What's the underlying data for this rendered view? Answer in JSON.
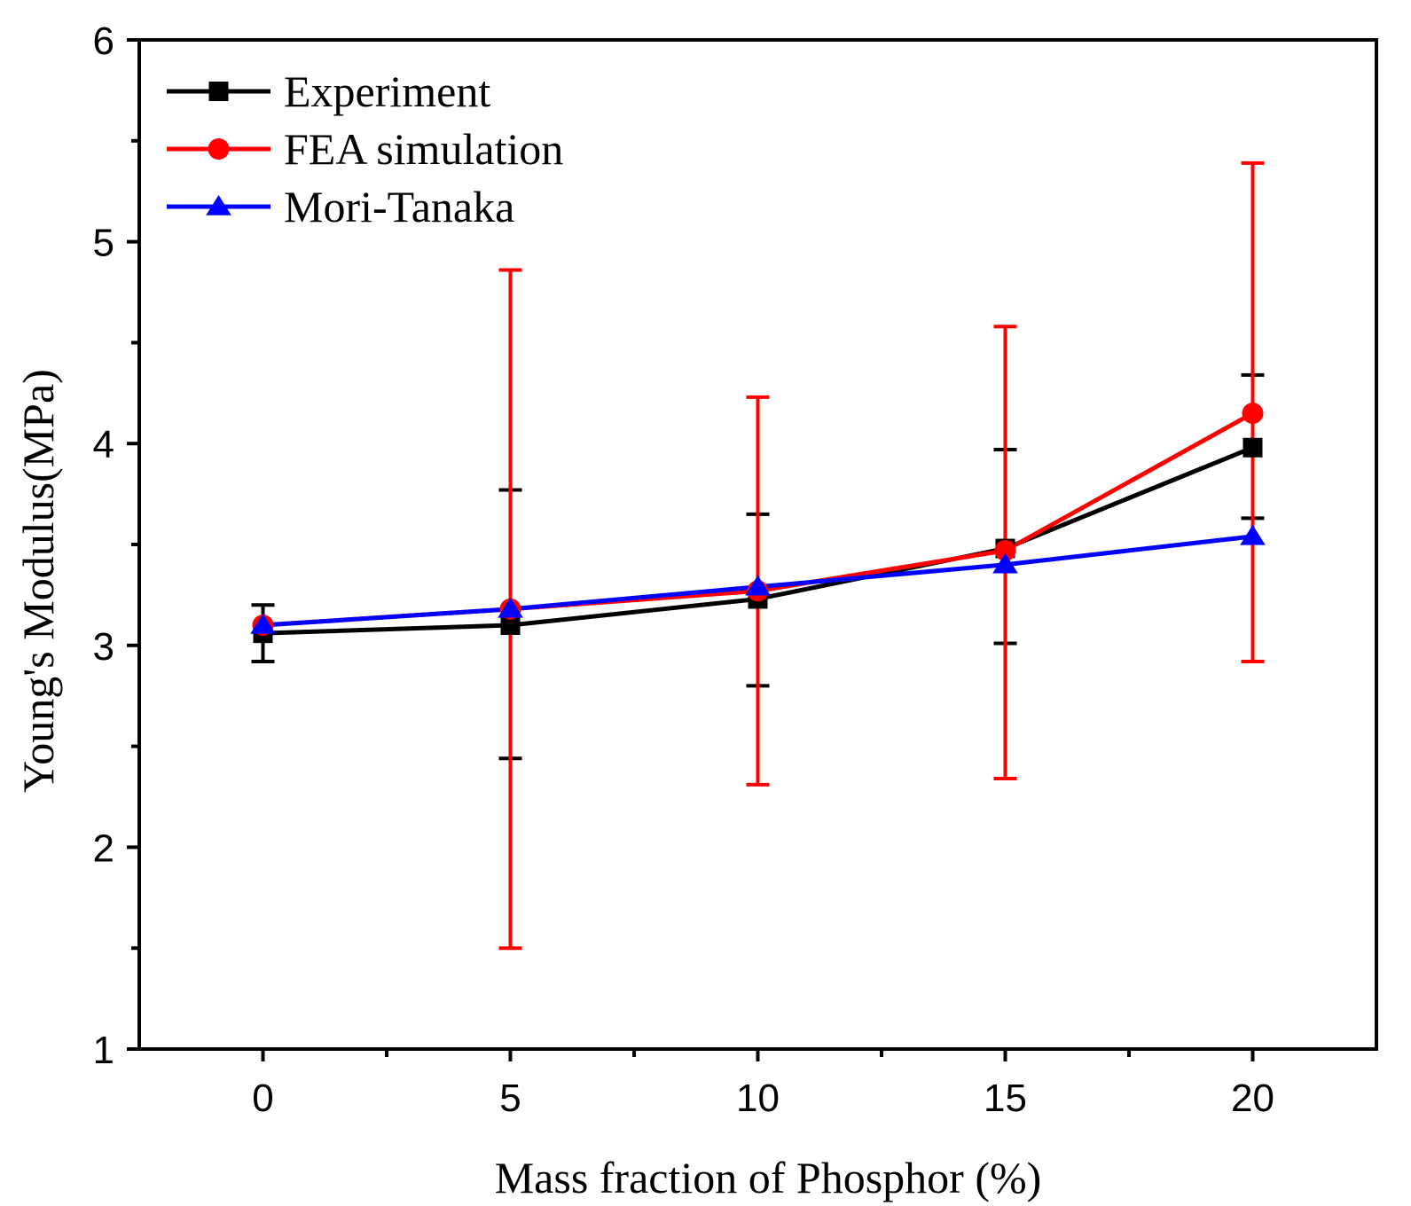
{
  "chart_data": {
    "type": "line",
    "title": "",
    "xlabel": "Mass fraction of Phosphor (%)",
    "ylabel": "Young's Modulus(MPa)",
    "xlim": [
      -2.5,
      22.5
    ],
    "ylim": [
      1,
      6
    ],
    "x_ticks": [
      0,
      5,
      10,
      15,
      20
    ],
    "x_tick_labels": [
      "0",
      "5",
      "10",
      "15",
      "20"
    ],
    "x_minor_ticks": [
      2.5,
      7.5,
      12.5,
      17.5
    ],
    "y_ticks": [
      1,
      2,
      3,
      4,
      5,
      6
    ],
    "y_tick_labels": [
      "1",
      "2",
      "3",
      "4",
      "5",
      "6"
    ],
    "y_minor_ticks": [
      1.5,
      2.5,
      3.5,
      4.5,
      5.5
    ],
    "grid": false,
    "legend_position": "top-left",
    "series": [
      {
        "name": "Experiment",
        "color": "#000000",
        "marker": "square",
        "x": [
          0,
          5,
          10,
          15,
          20
        ],
        "y": [
          3.06,
          3.1,
          3.23,
          3.48,
          3.98
        ],
        "error_low": [
          2.92,
          2.44,
          2.8,
          3.01,
          3.63
        ],
        "error_high": [
          3.2,
          3.77,
          3.65,
          3.97,
          4.34
        ]
      },
      {
        "name": "FEA simulation",
        "color": "#ff0000",
        "marker": "circle",
        "x": [
          0,
          5,
          10,
          15,
          20
        ],
        "y": [
          3.1,
          3.18,
          3.27,
          3.47,
          4.15
        ],
        "error_low": [
          null,
          1.5,
          2.31,
          2.34,
          2.92
        ],
        "error_high": [
          null,
          4.86,
          4.23,
          4.58,
          5.39
        ]
      },
      {
        "name": "Mori-Tanaka",
        "color": "#0000ff",
        "marker": "triangle",
        "x": [
          0,
          5,
          10,
          15,
          20
        ],
        "y": [
          3.1,
          3.18,
          3.29,
          3.4,
          3.54
        ],
        "error_low": [
          null,
          null,
          null,
          null,
          null
        ],
        "error_high": [
          null,
          null,
          null,
          null,
          null
        ]
      }
    ]
  }
}
